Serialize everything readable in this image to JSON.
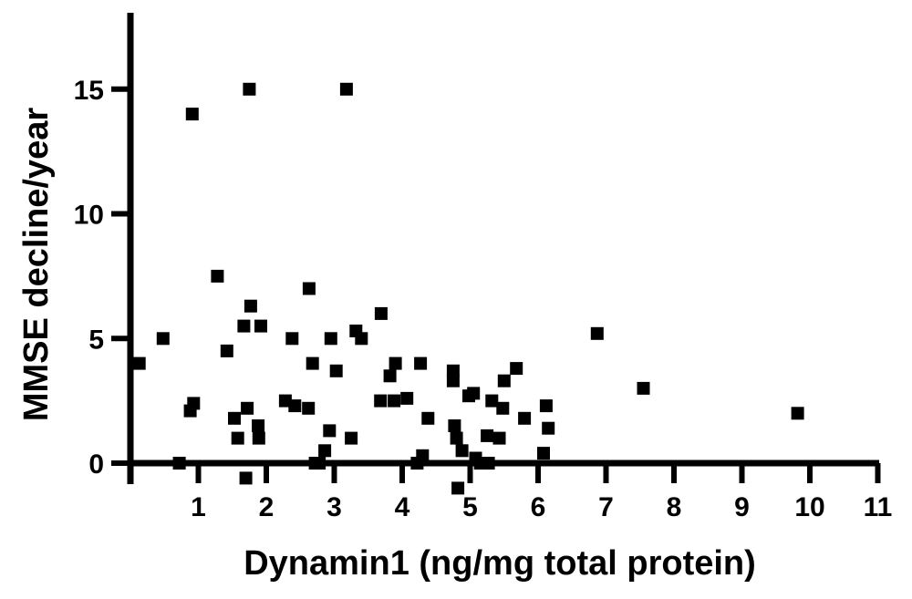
{
  "chart_data": {
    "type": "scatter",
    "xlabel": "Dynamin1 (ng/mg total protein)",
    "ylabel": "MMSE decline/year",
    "xlim": [
      0,
      11
    ],
    "ylim": [
      -1.5,
      18
    ],
    "x_ticks": [
      1,
      2,
      3,
      4,
      5,
      6,
      7,
      8,
      9,
      10,
      11
    ],
    "y_ticks": [
      0,
      5,
      10,
      15
    ],
    "grid": false,
    "legend": "none",
    "marker": "square",
    "marker_color": "#000000",
    "points": [
      {
        "x": 0.13,
        "y": 4.0
      },
      {
        "x": 0.48,
        "y": 5.0
      },
      {
        "x": 0.72,
        "y": 0.0
      },
      {
        "x": 0.88,
        "y": 2.1
      },
      {
        "x": 0.91,
        "y": 14.0
      },
      {
        "x": 0.93,
        "y": 2.4
      },
      {
        "x": 1.28,
        "y": 7.5
      },
      {
        "x": 1.42,
        "y": 4.5
      },
      {
        "x": 1.53,
        "y": 1.8
      },
      {
        "x": 1.58,
        "y": 1.0
      },
      {
        "x": 1.67,
        "y": 5.5
      },
      {
        "x": 1.7,
        "y": -0.6
      },
      {
        "x": 1.72,
        "y": 2.2
      },
      {
        "x": 1.75,
        "y": 15.0
      },
      {
        "x": 1.77,
        "y": 6.3
      },
      {
        "x": 1.88,
        "y": 1.5
      },
      {
        "x": 1.89,
        "y": 1.0
      },
      {
        "x": 1.92,
        "y": 5.5
      },
      {
        "x": 2.28,
        "y": 2.5
      },
      {
        "x": 2.38,
        "y": 5.0
      },
      {
        "x": 2.42,
        "y": 2.3
      },
      {
        "x": 2.62,
        "y": 2.2
      },
      {
        "x": 2.63,
        "y": 7.0
      },
      {
        "x": 2.68,
        "y": 4.0
      },
      {
        "x": 2.72,
        "y": 0.0
      },
      {
        "x": 2.78,
        "y": 0.0
      },
      {
        "x": 2.86,
        "y": 0.5
      },
      {
        "x": 2.93,
        "y": 1.3
      },
      {
        "x": 2.95,
        "y": 5.0
      },
      {
        "x": 3.03,
        "y": 3.7
      },
      {
        "x": 3.18,
        "y": 15.0
      },
      {
        "x": 3.25,
        "y": 1.0
      },
      {
        "x": 3.32,
        "y": 5.3
      },
      {
        "x": 3.4,
        "y": 5.0
      },
      {
        "x": 3.68,
        "y": 2.5
      },
      {
        "x": 3.69,
        "y": 6.0
      },
      {
        "x": 3.82,
        "y": 3.5
      },
      {
        "x": 3.88,
        "y": 2.5
      },
      {
        "x": 3.9,
        "y": 4.0
      },
      {
        "x": 4.07,
        "y": 2.6
      },
      {
        "x": 4.22,
        "y": 0.0
      },
      {
        "x": 4.27,
        "y": 4.0
      },
      {
        "x": 4.3,
        "y": 0.3
      },
      {
        "x": 4.38,
        "y": 1.8
      },
      {
        "x": 4.75,
        "y": 3.7
      },
      {
        "x": 4.75,
        "y": 3.3
      },
      {
        "x": 4.77,
        "y": 1.5
      },
      {
        "x": 4.8,
        "y": 1.0
      },
      {
        "x": 4.82,
        "y": -1.0
      },
      {
        "x": 4.88,
        "y": 0.5
      },
      {
        "x": 4.98,
        "y": 2.7
      },
      {
        "x": 5.05,
        "y": 2.8
      },
      {
        "x": 5.08,
        "y": 0.2
      },
      {
        "x": 5.15,
        "y": 0.0
      },
      {
        "x": 5.25,
        "y": 1.1
      },
      {
        "x": 5.27,
        "y": 0.0
      },
      {
        "x": 5.32,
        "y": 2.5
      },
      {
        "x": 5.43,
        "y": 1.0
      },
      {
        "x": 5.48,
        "y": 2.2
      },
      {
        "x": 5.5,
        "y": 3.3
      },
      {
        "x": 5.68,
        "y": 3.8
      },
      {
        "x": 5.8,
        "y": 1.8
      },
      {
        "x": 6.08,
        "y": 0.4
      },
      {
        "x": 6.12,
        "y": 2.3
      },
      {
        "x": 6.15,
        "y": 1.4
      },
      {
        "x": 6.87,
        "y": 5.2
      },
      {
        "x": 7.55,
        "y": 3.0
      },
      {
        "x": 9.82,
        "y": 2.0
      }
    ]
  }
}
